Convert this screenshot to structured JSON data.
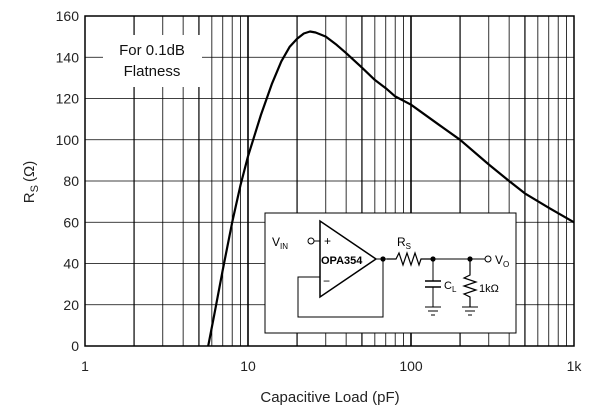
{
  "chart_data": {
    "type": "line",
    "xlabel": "Capacitive Load (pF)",
    "ylabel_main": "R",
    "ylabel_sub": "S",
    "ylabel_unit": "(Ω)",
    "x_scale": "log",
    "xlim": [
      1,
      1000
    ],
    "ylim": [
      0,
      160
    ],
    "x_ticks": [
      1,
      10,
      100,
      1000
    ],
    "x_tick_labels": [
      "1",
      "10",
      "100",
      "1k"
    ],
    "y_ticks": [
      0,
      20,
      40,
      60,
      80,
      100,
      120,
      140,
      160
    ],
    "y_tick_labels": [
      "0",
      "20",
      "40",
      "60",
      "80",
      "100",
      "120",
      "140",
      "160"
    ],
    "grid": true,
    "annotation": [
      "For 0.1dB",
      "Flatness"
    ],
    "series": [
      {
        "x": [
          5.7,
          6.2,
          7,
          8,
          9,
          10,
          12,
          14,
          16,
          18,
          20,
          22,
          24,
          26,
          28,
          30,
          35,
          40,
          50,
          60,
          70,
          80,
          100,
          150,
          200,
          300,
          400,
          500,
          700,
          1000
        ],
        "y": [
          0,
          15,
          37,
          60,
          78,
          92,
          112,
          127,
          138,
          145,
          149,
          151.5,
          152.5,
          152,
          151,
          150,
          146,
          142,
          135,
          129,
          125,
          121,
          117,
          107,
          100,
          88,
          80,
          74,
          67,
          60
        ]
      }
    ]
  },
  "inset": {
    "vin_main": "V",
    "vin_sub": "IN",
    "opamp_label": "OPA354",
    "plus": "+",
    "minus": "−",
    "rs_main": "R",
    "rs_sub": "S",
    "cl_main": "C",
    "cl_sub": "L",
    "rload_label": "1kΩ",
    "vo_main": "V",
    "vo_sub": "O"
  }
}
